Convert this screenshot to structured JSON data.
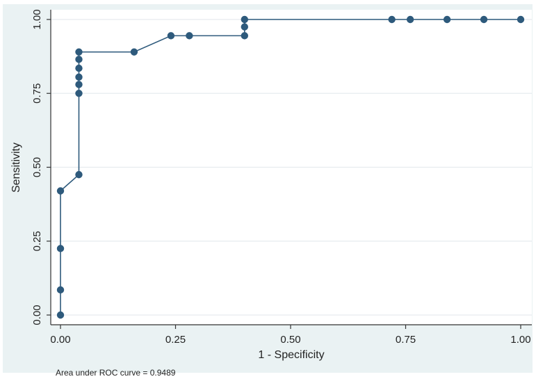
{
  "chart_data": {
    "type": "line",
    "xlabel": "1 - Specificity",
    "ylabel": "Sensitivity",
    "xlim": [
      0,
      1
    ],
    "ylim": [
      0,
      1
    ],
    "x_ticks": [
      "0.00",
      "0.25",
      "0.50",
      "0.75",
      "1.00"
    ],
    "y_ticks": [
      "0.00",
      "0.25",
      "0.50",
      "0.75",
      "1.00"
    ],
    "grid": true,
    "markers": true,
    "colors": {
      "series": "#2e5a7c",
      "grid": "#e6ebef",
      "plot_bg": "#ffffff",
      "frame": "#dde6ec"
    },
    "series": [
      {
        "points": [
          [
            0.0,
            0.0
          ],
          [
            0.0,
            0.085
          ],
          [
            0.0,
            0.225
          ],
          [
            0.0,
            0.42
          ],
          [
            0.04,
            0.475
          ],
          [
            0.04,
            0.75
          ],
          [
            0.04,
            0.78
          ],
          [
            0.04,
            0.805
          ],
          [
            0.04,
            0.835
          ],
          [
            0.04,
            0.865
          ],
          [
            0.04,
            0.89
          ],
          [
            0.16,
            0.89
          ],
          [
            0.24,
            0.945
          ],
          [
            0.28,
            0.945
          ],
          [
            0.4,
            0.945
          ],
          [
            0.4,
            0.975
          ],
          [
            0.4,
            1.0
          ],
          [
            0.72,
            1.0
          ],
          [
            0.76,
            1.0
          ],
          [
            0.84,
            1.0
          ],
          [
            0.92,
            1.0
          ],
          [
            1.0,
            1.0
          ]
        ]
      }
    ],
    "annotation": "Area under ROC curve = 0.9489"
  }
}
